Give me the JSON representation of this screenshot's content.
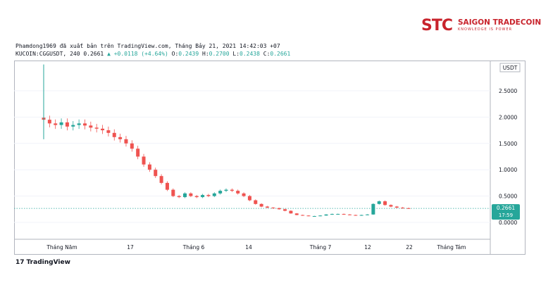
{
  "brand": {
    "logo_mark": "STC",
    "name": "SAIGON TRADECOIN",
    "tagline": "KNOWLEDGE IS POWER"
  },
  "header": {
    "published": "Phamdong1969 đã xuất bản trên TradingView.com, Tháng Bảy 21, 2021 14:42:03 +07",
    "symbol": "KUCOIN:CGGUSDT, 240",
    "last": "0.2661",
    "arrow": "▲",
    "change": "+0.0118 (+4.64%)",
    "o_label": "O:",
    "o": "0.2439",
    "h_label": "H:",
    "h": "0.2700",
    "l_label": "L:",
    "l": "0.2438",
    "c_label": "C:",
    "c": "0.2661"
  },
  "chart_data": {
    "type": "candlestick",
    "currency": "USDT",
    "ylim": [
      -0.3,
      3.0
    ],
    "y_ticks": [
      0.0,
      0.5,
      1.0,
      1.5,
      2.0,
      2.5
    ],
    "y_tick_labels": [
      "0.0000",
      "0.5000",
      "1.0000",
      "1.5000",
      "2.0000",
      "2.5000"
    ],
    "x_tick_labels": [
      "Tháng Năm",
      "17",
      "Tháng 6",
      "14",
      "Tháng 7",
      "12",
      "22",
      "Tháng Tám"
    ],
    "last_price": 0.2661,
    "last_price_label": "0.2661",
    "countdown": "17:59",
    "close_series": [
      1.95,
      1.88,
      1.85,
      1.9,
      1.82,
      1.85,
      1.88,
      1.84,
      1.8,
      1.78,
      1.75,
      1.7,
      1.62,
      1.58,
      1.5,
      1.4,
      1.25,
      1.1,
      1.0,
      0.88,
      0.75,
      0.62,
      0.5,
      0.48,
      0.55,
      0.5,
      0.48,
      0.52,
      0.5,
      0.55,
      0.6,
      0.62,
      0.6,
      0.55,
      0.5,
      0.42,
      0.35,
      0.3,
      0.28,
      0.27,
      0.25,
      0.22,
      0.17,
      0.14,
      0.13,
      0.12,
      0.12,
      0.13,
      0.15,
      0.16,
      0.16,
      0.15,
      0.14,
      0.13,
      0.14,
      0.15,
      0.35,
      0.4,
      0.33,
      0.3,
      0.28,
      0.27,
      0.2661
    ]
  }
}
